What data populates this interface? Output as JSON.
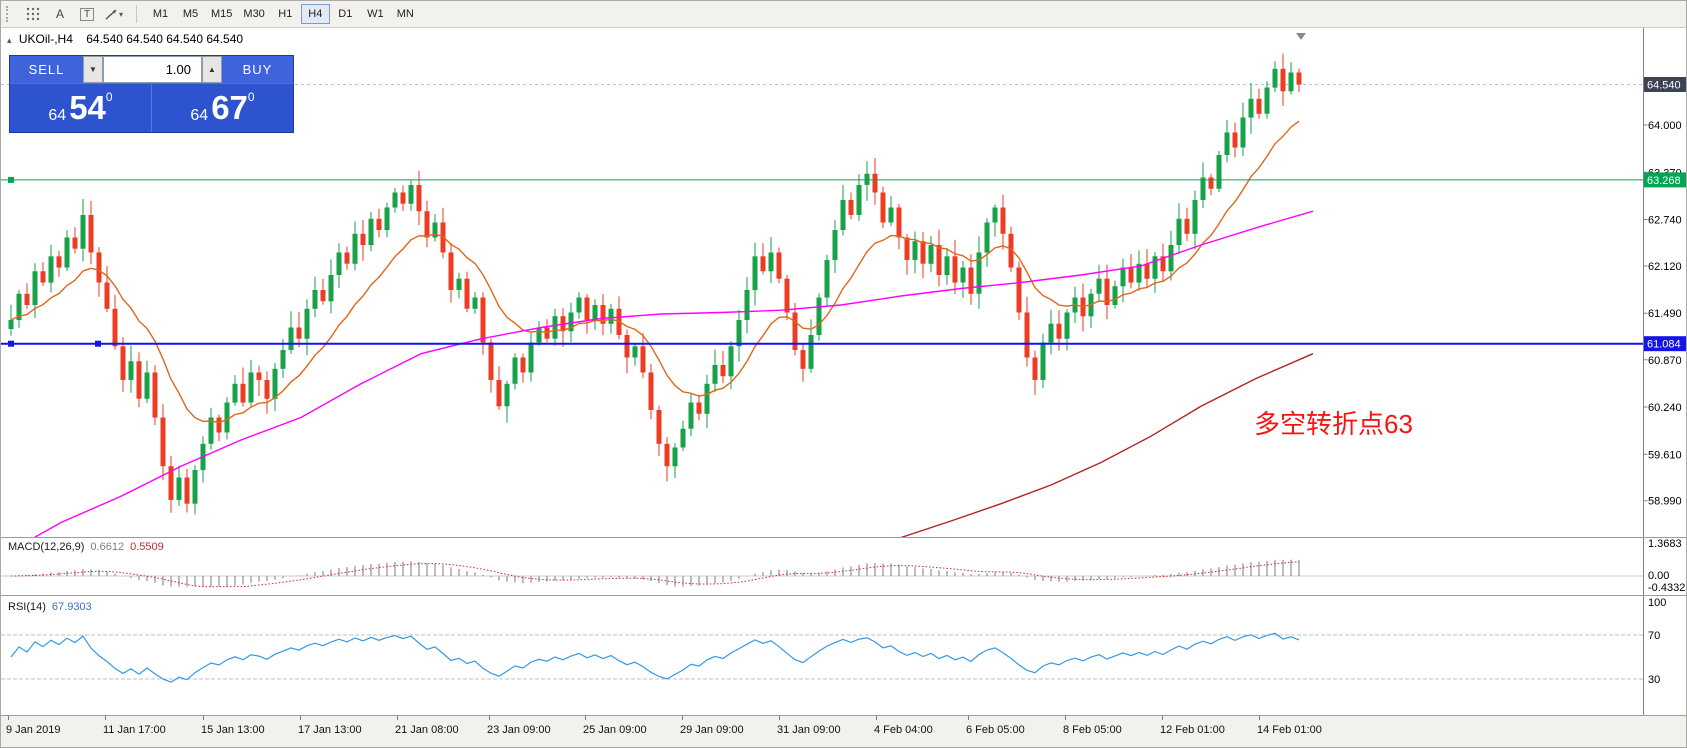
{
  "toolbar": {
    "tools": {
      "text_label": "A",
      "label_tool": "T",
      "caret": "▾"
    },
    "timeframes": [
      "M1",
      "M5",
      "M15",
      "M30",
      "H1",
      "H4",
      "D1",
      "W1",
      "MN"
    ],
    "active_timeframe": "H4"
  },
  "chart": {
    "collapse_glyph": "▴",
    "symbol_period": "UKOil-,H4",
    "ohlc": "64.540  64.540  64.540  64.540"
  },
  "trade_panel": {
    "sell_label": "SELL",
    "buy_label": "BUY",
    "volume": "1.00",
    "vol_down_glyph": "▼",
    "vol_up_glyph": "▲",
    "sell_big_left": "64",
    "sell_big": "54",
    "sell_sup": "0",
    "buy_big_left": "64",
    "buy_big": "67",
    "buy_sup": "0"
  },
  "annotation": {
    "text": "多空转折点63",
    "color": "#F81414"
  },
  "price_axis": {
    "gridlines": [
      "64.000",
      "63.370",
      "62.740",
      "62.120",
      "61.490",
      "60.870",
      "60.240",
      "59.610",
      "58.990"
    ],
    "current_label": "64.540",
    "lines": [
      {
        "label": "63.268",
        "price": 63.268,
        "color": "#00A651",
        "width": 1,
        "handles": [
          10
        ]
      },
      {
        "label": "61.084",
        "price": 61.084,
        "color": "#1414E8",
        "width": 2,
        "handles": [
          10,
          97
        ]
      }
    ]
  },
  "macd": {
    "name": "MACD(12,26,9)",
    "value": "0.6612",
    "signal": "0.5509",
    "axis": [
      "1.3683",
      "0.00",
      "-0.4332"
    ]
  },
  "rsi": {
    "name": "RSI(14)",
    "value": "67.9303",
    "period": 14,
    "axis": [
      "100",
      "70",
      "30"
    ],
    "levels": [
      70,
      30
    ]
  },
  "time_axis": {
    "labels": [
      "9 Jan 2019",
      "11 Jan 17:00",
      "15 Jan 13:00",
      "17 Jan 13:00",
      "21 Jan 08:00",
      "23 Jan 09:00",
      "25 Jan 09:00",
      "29 Jan 09:00",
      "31 Jan 09:00",
      "4 Feb 04:00",
      "6 Feb 05:00",
      "8 Feb 05:00",
      "12 Feb 01:00",
      "14 Feb 01:00"
    ],
    "x": [
      5,
      102,
      200,
      297,
      394,
      486,
      582,
      679,
      776,
      873,
      965,
      1062,
      1159,
      1256
    ]
  },
  "colors": {
    "candle_up": "#17A24A",
    "candle_down": "#EE3B24",
    "ma_fast": "#E2661A",
    "ma_medium": "#FF00FF",
    "ma_slow": "#B22222",
    "macd_hist": "#ABABAB",
    "macd_signal": "#D22A2A",
    "rsi_line": "#3399E6",
    "current_chip": "#3C4454"
  },
  "chart_data": {
    "type": "candlestick",
    "symbol": "UKOil-",
    "timeframe": "H4",
    "current_price": 64.54,
    "price_range_visible": [
      58.55,
      65.28
    ],
    "ma_orange_period": 13,
    "closes": [
      61.4,
      61.75,
      61.6,
      62.05,
      61.9,
      62.25,
      62.1,
      62.5,
      62.35,
      62.8,
      62.3,
      61.9,
      61.55,
      61.05,
      60.6,
      60.85,
      60.35,
      60.7,
      60.1,
      59.45,
      59.0,
      59.3,
      58.95,
      59.4,
      59.75,
      60.1,
      59.9,
      60.3,
      60.55,
      60.3,
      60.7,
      60.6,
      60.35,
      60.75,
      61.0,
      61.3,
      61.15,
      61.55,
      61.8,
      61.65,
      62.0,
      62.3,
      62.15,
      62.55,
      62.4,
      62.75,
      62.6,
      62.9,
      63.1,
      62.95,
      63.2,
      62.85,
      62.5,
      62.7,
      62.3,
      61.8,
      61.95,
      61.55,
      61.7,
      61.1,
      60.6,
      60.25,
      60.55,
      60.9,
      60.7,
      61.1,
      61.3,
      61.15,
      61.45,
      61.25,
      61.5,
      61.7,
      61.4,
      61.6,
      61.35,
      61.55,
      61.2,
      60.9,
      61.05,
      60.7,
      60.2,
      59.75,
      59.45,
      59.7,
      59.95,
      60.3,
      60.15,
      60.55,
      60.8,
      60.65,
      61.05,
      61.4,
      61.8,
      62.25,
      62.05,
      62.3,
      61.95,
      61.5,
      61.0,
      60.75,
      61.2,
      61.7,
      62.2,
      62.6,
      63.0,
      62.8,
      63.2,
      63.35,
      63.1,
      62.7,
      62.9,
      62.5,
      62.2,
      62.45,
      62.15,
      62.4,
      62.0,
      62.25,
      61.9,
      62.1,
      61.75,
      62.3,
      62.7,
      62.9,
      62.55,
      62.1,
      61.5,
      60.9,
      60.6,
      61.1,
      61.35,
      61.15,
      61.5,
      61.7,
      61.45,
      61.75,
      61.95,
      61.6,
      61.85,
      62.1,
      61.9,
      62.15,
      61.95,
      62.25,
      62.05,
      62.4,
      62.75,
      62.55,
      63.0,
      63.3,
      63.15,
      63.6,
      63.9,
      63.7,
      64.1,
      64.35,
      64.15,
      64.5,
      64.75,
      64.45,
      64.7,
      64.54
    ],
    "ma_medium_points": [
      [
        0,
        58.25
      ],
      [
        60,
        58.7
      ],
      [
        120,
        59.05
      ],
      [
        180,
        59.45
      ],
      [
        240,
        59.8
      ],
      [
        300,
        60.1
      ],
      [
        360,
        60.55
      ],
      [
        420,
        60.95
      ],
      [
        480,
        61.15
      ],
      [
        540,
        61.3
      ],
      [
        600,
        61.42
      ],
      [
        660,
        61.48
      ],
      [
        720,
        61.5
      ],
      [
        780,
        61.53
      ],
      [
        840,
        61.6
      ],
      [
        900,
        61.72
      ],
      [
        960,
        61.82
      ],
      [
        1020,
        61.9
      ],
      [
        1080,
        62.0
      ],
      [
        1140,
        62.12
      ],
      [
        1200,
        62.4
      ],
      [
        1260,
        62.65
      ],
      [
        1312,
        62.85
      ]
    ],
    "ma_slow_points": [
      [
        900,
        58.5
      ],
      [
        950,
        58.72
      ],
      [
        1000,
        58.95
      ],
      [
        1050,
        59.2
      ],
      [
        1100,
        59.5
      ],
      [
        1150,
        59.85
      ],
      [
        1200,
        60.25
      ],
      [
        1255,
        60.62
      ],
      [
        1312,
        60.95
      ]
    ],
    "indicators": {
      "macd": {
        "fast": 12,
        "slow": 26,
        "signal": 9
      },
      "rsi": {
        "period": 14
      }
    }
  }
}
